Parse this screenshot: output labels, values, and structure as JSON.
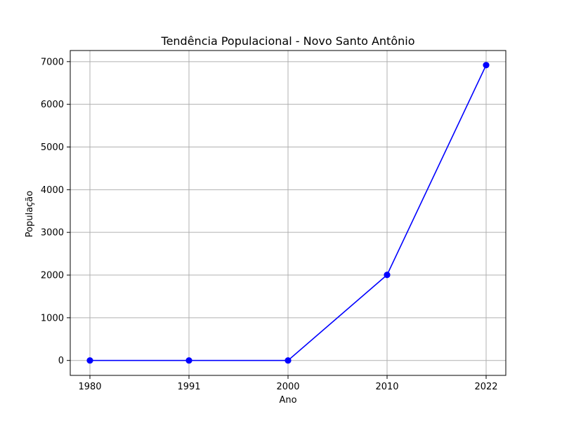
{
  "chart_data": {
    "type": "line",
    "title": "Tendência Populacional - Novo Santo Antônio",
    "xlabel": "Ano",
    "ylabel": "População",
    "categories": [
      "1980",
      "1991",
      "2000",
      "2010",
      "2022"
    ],
    "series": [
      {
        "values": [
          0,
          0,
          0,
          2005,
          6918
        ],
        "color": "#0000ff",
        "marker": "circle"
      }
    ],
    "ylim": [
      -350,
      7260
    ],
    "yticks": [
      0,
      1000,
      2000,
      3000,
      4000,
      5000,
      6000,
      7000
    ],
    "ytick_labels": [
      "0",
      "1000",
      "2000",
      "3000",
      "4000",
      "5000",
      "6000",
      "7000"
    ],
    "grid": true,
    "legend": "none"
  }
}
